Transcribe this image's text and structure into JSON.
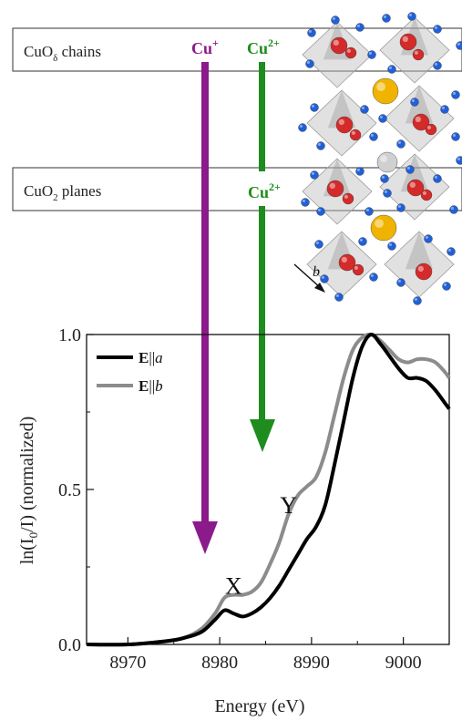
{
  "bands": {
    "chains_label": "CuO",
    "chains_sub": "δ",
    "chains_suffix": " chains",
    "planes_label": "CuO",
    "planes_sub": "2",
    "planes_suffix": " planes"
  },
  "arrows": {
    "cu_plus": "Cu",
    "cu_plus_sup": "+",
    "cu_2plus_chain": "Cu",
    "cu_2plus_chain_sup": "2+",
    "cu_2plus_plane": "Cu",
    "cu_2plus_plane_sup": "2+",
    "x_marker": "X",
    "y_marker": "Y"
  },
  "crystal": {
    "axis_label": "b"
  },
  "colors": {
    "cu_plus": "#8b1a8b",
    "cu_2plus": "#1e8c1e",
    "series_a": "#000000",
    "series_b": "#8c8c8c",
    "oxygen": "#2060d8",
    "copper": "#d42a2a",
    "yttrium": "#f0b400",
    "barium": "#d0d0d0"
  },
  "chart_data": {
    "type": "line",
    "xlabel": "Energy (eV)",
    "ylabel": "ln(I0/I) (normalized)",
    "ylabel_main": "ln(I",
    "ylabel_sub": "0",
    "ylabel_tail": "/I) (normalized)",
    "xlim": [
      8965.5,
      9005
    ],
    "ylim": [
      0,
      1
    ],
    "xticks": [
      8970,
      8980,
      8990,
      9000
    ],
    "xtick_labels": [
      "8970",
      "8980",
      "8990",
      "9000"
    ],
    "yticks": [
      0,
      0.5,
      1
    ],
    "ytick_labels": [
      "0.0",
      "0.5",
      "1.0"
    ],
    "legend_position": "top-left",
    "series": [
      {
        "name": "E||a",
        "legend_bold": "E",
        "legend_rest": "||",
        "legend_italic": "a",
        "x": [
          8965.5,
          8970,
          8974,
          8976,
          8978,
          8979.5,
          8980.5,
          8981.5,
          8982.5,
          8983.5,
          8984.5,
          8985.5,
          8986.5,
          8987.5,
          8988.5,
          8989.5,
          8990.5,
          8991.5,
          8992.5,
          8993.5,
          8994.5,
          8995.5,
          8996.5,
          8997.5,
          8998.5,
          8999.5,
          9000.5,
          9001.5,
          9002.5,
          9003.5,
          9004.5,
          9005
        ],
        "values": [
          0.0,
          0.0,
          0.01,
          0.02,
          0.04,
          0.08,
          0.11,
          0.1,
          0.09,
          0.1,
          0.12,
          0.15,
          0.19,
          0.24,
          0.29,
          0.34,
          0.38,
          0.45,
          0.58,
          0.72,
          0.86,
          0.96,
          1.0,
          0.97,
          0.93,
          0.89,
          0.86,
          0.86,
          0.85,
          0.82,
          0.78,
          0.76
        ]
      },
      {
        "name": "E||b",
        "legend_bold": "E",
        "legend_rest": "||",
        "legend_italic": "b",
        "x": [
          8965.5,
          8970,
          8974,
          8976,
          8978,
          8979.5,
          8980.5,
          8981.5,
          8982.5,
          8983.5,
          8984.5,
          8985.5,
          8986.5,
          8987.5,
          8988.5,
          8989.5,
          8990.5,
          8991.5,
          8992.5,
          8993.5,
          8994.5,
          8995.5,
          8996.5,
          8997.5,
          8998.5,
          8999.5,
          9000.5,
          9001.5,
          9002.5,
          9003.5,
          9004.5,
          9005
        ],
        "values": [
          0.0,
          0.0,
          0.01,
          0.02,
          0.05,
          0.1,
          0.15,
          0.16,
          0.16,
          0.17,
          0.2,
          0.26,
          0.33,
          0.42,
          0.48,
          0.51,
          0.54,
          0.62,
          0.74,
          0.86,
          0.95,
          0.99,
          1.0,
          0.98,
          0.95,
          0.92,
          0.91,
          0.92,
          0.92,
          0.91,
          0.88,
          0.86
        ]
      }
    ],
    "annotations": [
      {
        "label": "X",
        "x": 8981.5,
        "y": 0.19
      },
      {
        "label": "Y",
        "x": 8987.5,
        "y": 0.45
      }
    ]
  }
}
